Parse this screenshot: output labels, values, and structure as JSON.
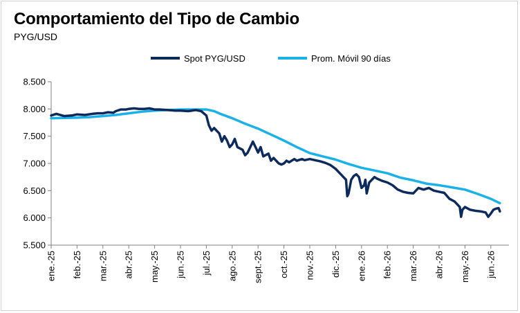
{
  "title": "Comportamiento  del Tipo de Cambio",
  "subtitle": "PYG/USD",
  "colors": {
    "spot": "#0d2a5c",
    "avg": "#1ab0e8"
  },
  "chart_data": {
    "type": "line",
    "title": "Comportamiento  del Tipo de Cambio",
    "subtitle": "PYG/USD",
    "xlabel": "",
    "ylabel": "",
    "ylim": [
      5500,
      8500
    ],
    "yticks": [
      5500,
      6000,
      6500,
      7000,
      7500,
      8000,
      8500
    ],
    "ytick_labels": [
      "5.500",
      "6.000",
      "6.500",
      "7.000",
      "7.500",
      "8.000",
      "8.500"
    ],
    "x_range": [
      0,
      17.7
    ],
    "xticks": [
      0,
      1,
      2,
      3,
      4,
      5,
      6,
      7,
      8,
      9,
      10,
      11,
      12,
      13,
      14,
      15,
      16,
      17
    ],
    "xtick_labels": [
      "ene.-25",
      "feb.-25",
      "mar.-25",
      "abr.-25",
      "may.-25",
      "jun.-25",
      "jul.-25",
      "ago.-25",
      "sept.-25",
      "oct.-25",
      "nov.-25",
      "dic.-25",
      "ene.-26",
      "feb.-26",
      "mar.-26",
      "abr.-26",
      "may.-26",
      "jun.-26"
    ],
    "legend": {
      "position": "top",
      "entries": [
        "Spot PYG/USD",
        "Prom. Móvil 90 días"
      ]
    },
    "grid": false,
    "series": [
      {
        "name": "Spot PYG/USD",
        "x": [
          0,
          0.2,
          0.5,
          0.8,
          1.0,
          1.3,
          1.6,
          1.8,
          2.0,
          2.2,
          2.4,
          2.5,
          2.7,
          2.9,
          3.0,
          3.2,
          3.4,
          3.6,
          3.8,
          4.0,
          4.2,
          4.5,
          4.8,
          5.0,
          5.3,
          5.6,
          5.8,
          6.0,
          6.1,
          6.2,
          6.3,
          6.5,
          6.6,
          6.7,
          6.8,
          6.9,
          7.0,
          7.1,
          7.2,
          7.4,
          7.5,
          7.6,
          7.8,
          7.9,
          8.0,
          8.1,
          8.2,
          8.4,
          8.5,
          8.6,
          8.8,
          8.9,
          9.0,
          9.1,
          9.2,
          9.4,
          9.5,
          9.7,
          9.8,
          10.0,
          10.2,
          10.4,
          10.6,
          10.8,
          11.0,
          11.2,
          11.4,
          11.45,
          11.5,
          11.6,
          11.7,
          11.8,
          11.9,
          12.0,
          12.1,
          12.15,
          12.2,
          12.3,
          12.4,
          12.5,
          12.6,
          12.8,
          13.0,
          13.2,
          13.4,
          13.6,
          13.8,
          14.0,
          14.2,
          14.4,
          14.6,
          14.8,
          15.0,
          15.2,
          15.4,
          15.6,
          15.8,
          15.85,
          15.9,
          16.0,
          16.2,
          16.4,
          16.6,
          16.8,
          16.9,
          17.0,
          17.1,
          17.2,
          17.3,
          17.35
        ],
        "values": [
          7880,
          7910,
          7870,
          7880,
          7900,
          7890,
          7910,
          7920,
          7920,
          7940,
          7930,
          7960,
          7990,
          7990,
          8000,
          8010,
          8000,
          8000,
          8010,
          7990,
          7990,
          7980,
          7970,
          7970,
          7960,
          7980,
          7960,
          7880,
          7700,
          7600,
          7650,
          7550,
          7400,
          7500,
          7420,
          7300,
          7350,
          7450,
          7300,
          7250,
          7150,
          7200,
          7400,
          7300,
          7200,
          7300,
          7130,
          7180,
          7050,
          7100,
          7000,
          6980,
          7000,
          7050,
          7020,
          7080,
          7050,
          7080,
          7060,
          7080,
          7060,
          7040,
          7010,
          6970,
          6900,
          6800,
          6700,
          6400,
          6450,
          6700,
          6770,
          6800,
          6750,
          6550,
          6600,
          6700,
          6450,
          6650,
          6700,
          6750,
          6720,
          6680,
          6650,
          6600,
          6520,
          6480,
          6460,
          6450,
          6550,
          6520,
          6550,
          6500,
          6480,
          6460,
          6350,
          6300,
          6200,
          6020,
          6150,
          6200,
          6150,
          6130,
          6120,
          6100,
          6020,
          6080,
          6150,
          6170,
          6180,
          6120
        ]
      },
      {
        "name": "Prom. Móvil 90 días",
        "x": [
          0,
          1.0,
          1.5,
          2.0,
          2.5,
          3.0,
          3.5,
          4.0,
          4.5,
          5.0,
          5.5,
          6.0,
          6.3,
          6.6,
          7.0,
          7.5,
          8.0,
          8.5,
          9.0,
          9.5,
          10.0,
          10.5,
          11.0,
          11.5,
          12.0,
          12.5,
          13.0,
          13.5,
          14.0,
          14.5,
          15.0,
          15.5,
          16.0,
          16.5,
          17.0,
          17.35
        ],
        "values": [
          7830,
          7840,
          7850,
          7870,
          7890,
          7920,
          7950,
          7970,
          7980,
          7990,
          7990,
          7990,
          7960,
          7900,
          7830,
          7730,
          7640,
          7530,
          7420,
          7300,
          7190,
          7130,
          7070,
          6990,
          6920,
          6870,
          6820,
          6740,
          6690,
          6630,
          6600,
          6560,
          6520,
          6440,
          6350,
          6270
        ]
      }
    ]
  }
}
